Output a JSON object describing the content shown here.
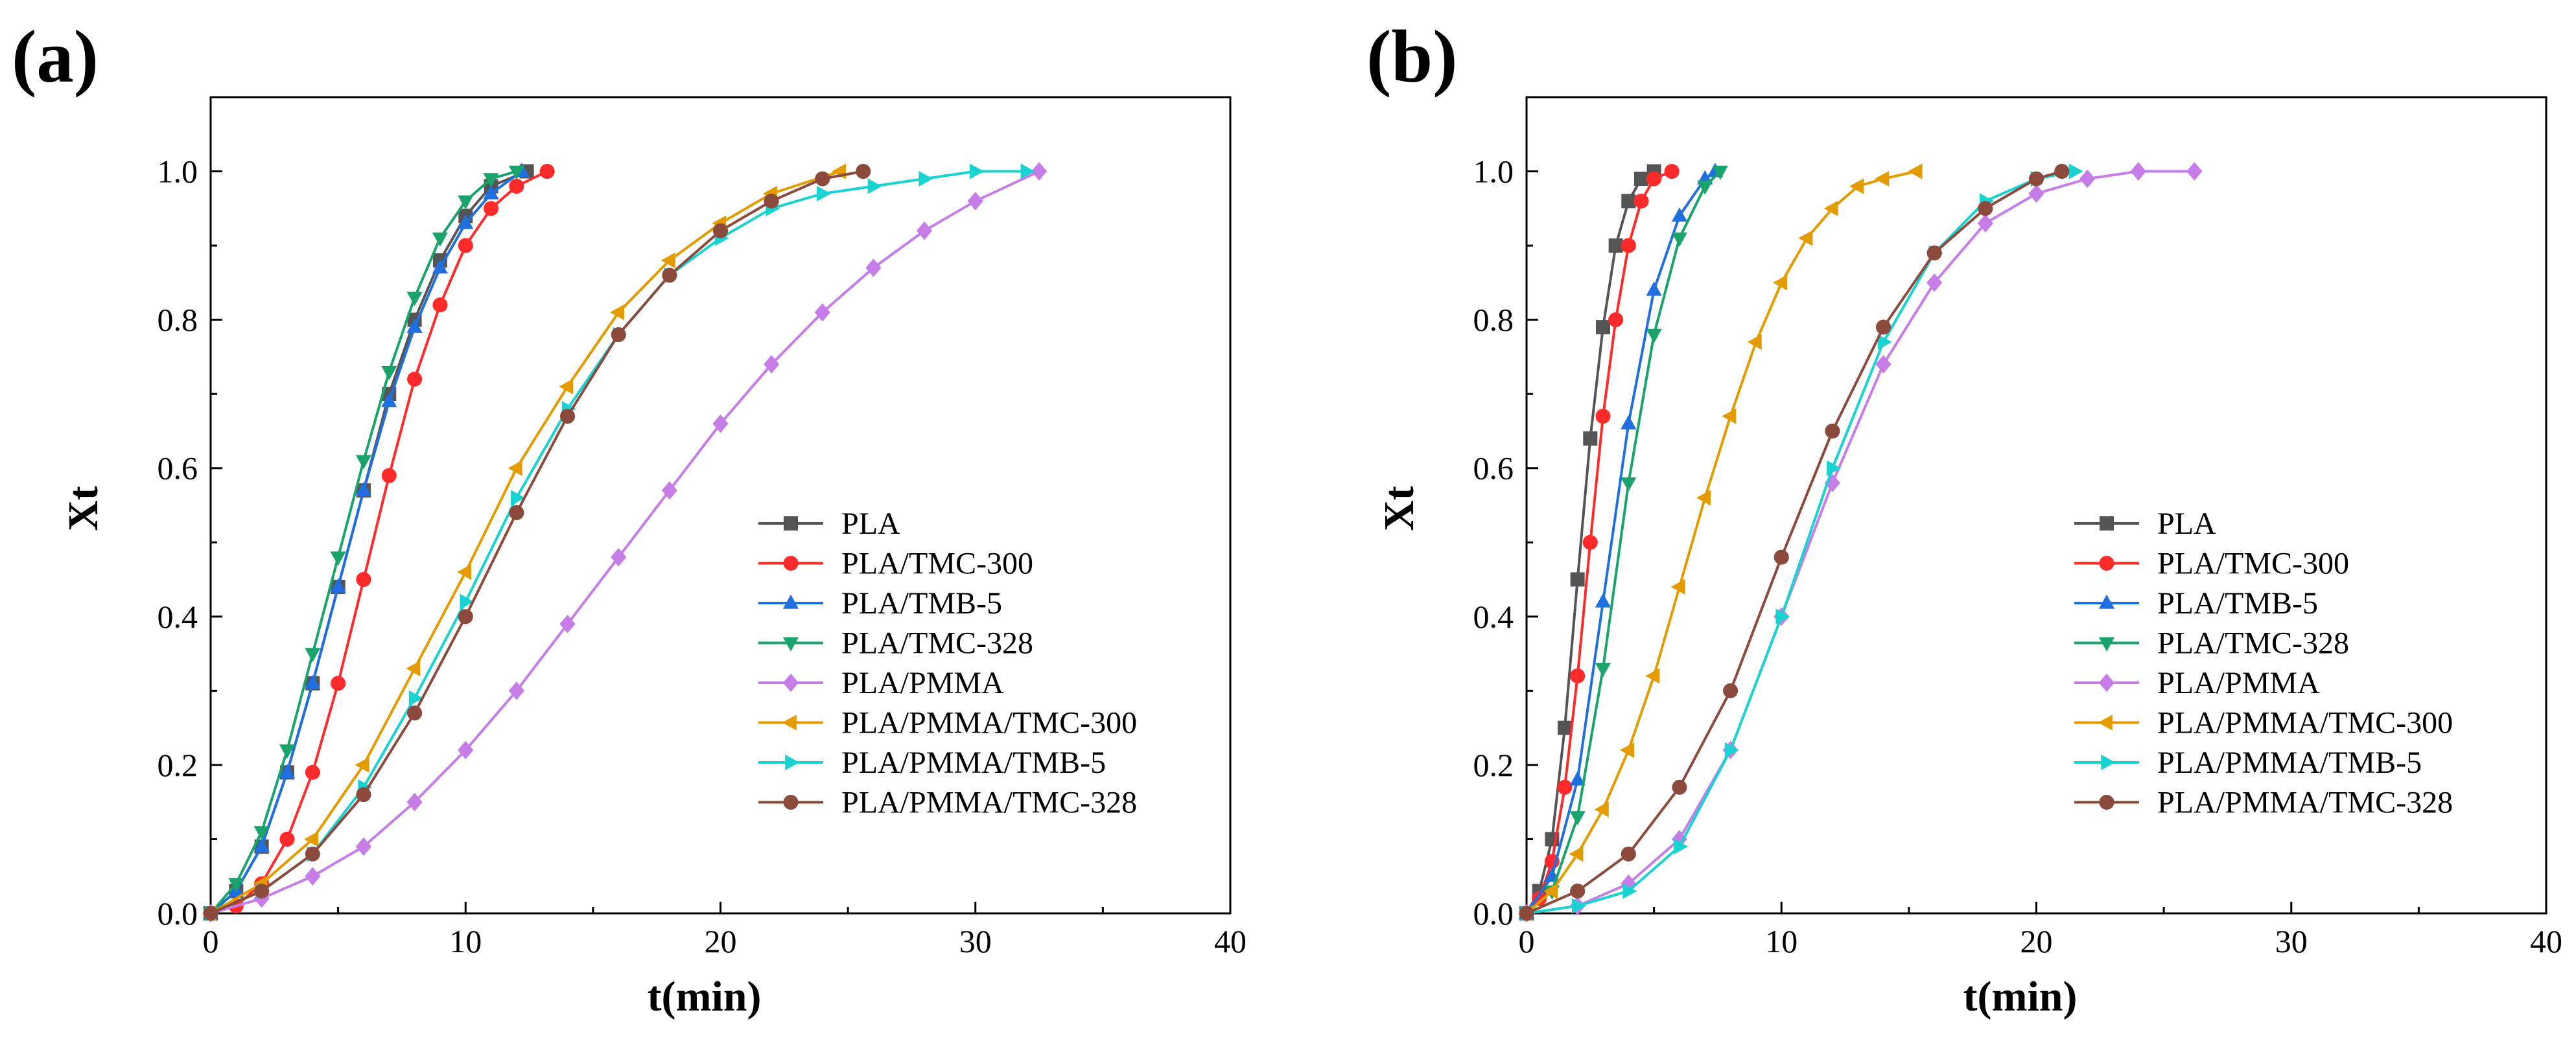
{
  "panels": [
    {
      "label": "(a)"
    },
    {
      "label": "(b)"
    }
  ],
  "chart_data": [
    {
      "type": "line",
      "panel": "(a)",
      "title": "",
      "xlabel": "t(min)",
      "ylabel": "Xt",
      "xlim": [
        0,
        40
      ],
      "ylim": [
        0,
        1.1
      ],
      "xticks": [
        0,
        10,
        20,
        30,
        40
      ],
      "yticks": [
        0.0,
        0.2,
        0.4,
        0.6,
        0.8,
        1.0
      ],
      "grid": false,
      "legend_position": "lower-right",
      "series": [
        {
          "name": "PLA",
          "color": "#555555",
          "marker": "square",
          "x": [
            0,
            1,
            2,
            3,
            4,
            5,
            6,
            7,
            8,
            9,
            10,
            11,
            12.4
          ],
          "y": [
            0,
            0.03,
            0.09,
            0.19,
            0.31,
            0.44,
            0.57,
            0.7,
            0.8,
            0.88,
            0.94,
            0.98,
            1.0
          ]
        },
        {
          "name": "PLA/TMC-300",
          "color": "#ff2b2b",
          "marker": "circle",
          "x": [
            0,
            1,
            2,
            3,
            4,
            5,
            6,
            7,
            8,
            9,
            10,
            11,
            12,
            13.2
          ],
          "y": [
            0,
            0.01,
            0.04,
            0.1,
            0.19,
            0.31,
            0.45,
            0.59,
            0.72,
            0.82,
            0.9,
            0.95,
            0.98,
            1.0
          ]
        },
        {
          "name": "PLA/TMB-5",
          "color": "#1f6fe0",
          "marker": "triangle-up",
          "x": [
            0,
            1,
            2,
            3,
            4,
            5,
            6,
            7,
            8,
            9,
            10,
            11,
            12.2
          ],
          "y": [
            0,
            0.03,
            0.09,
            0.19,
            0.31,
            0.44,
            0.57,
            0.69,
            0.79,
            0.87,
            0.93,
            0.97,
            1.0
          ]
        },
        {
          "name": "PLA/TMC-328",
          "color": "#1aa36b",
          "marker": "triangle-down",
          "x": [
            0,
            1,
            2,
            3,
            4,
            5,
            6,
            7,
            8,
            9,
            10,
            11,
            12
          ],
          "y": [
            0,
            0.04,
            0.11,
            0.22,
            0.35,
            0.48,
            0.61,
            0.73,
            0.83,
            0.91,
            0.96,
            0.99,
            1.0
          ]
        },
        {
          "name": "PLA/PMMA",
          "color": "#c77de8",
          "marker": "diamond",
          "x": [
            0,
            2,
            4,
            6,
            8,
            10,
            12,
            14,
            16,
            18,
            20,
            22,
            24,
            26,
            28,
            30,
            32.5
          ],
          "y": [
            0,
            0.02,
            0.05,
            0.09,
            0.15,
            0.22,
            0.3,
            0.39,
            0.48,
            0.57,
            0.66,
            0.74,
            0.81,
            0.87,
            0.92,
            0.96,
            1.0
          ]
        },
        {
          "name": "PLA/PMMA/TMC-300",
          "color": "#e39b00",
          "marker": "triangle-left",
          "x": [
            0,
            2,
            4,
            6,
            8,
            10,
            12,
            14,
            16,
            18,
            20,
            22,
            24.7
          ],
          "y": [
            0,
            0.04,
            0.1,
            0.2,
            0.33,
            0.46,
            0.6,
            0.71,
            0.81,
            0.88,
            0.93,
            0.97,
            1.0
          ]
        },
        {
          "name": "PLA/PMMA/TMB-5",
          "color": "#19d3d3",
          "marker": "triangle-right",
          "x": [
            0,
            2,
            4,
            6,
            8,
            10,
            12,
            14,
            16,
            18,
            20,
            22,
            24,
            26,
            28,
            30,
            32
          ],
          "y": [
            0,
            0.03,
            0.08,
            0.17,
            0.29,
            0.42,
            0.56,
            0.68,
            0.78,
            0.86,
            0.91,
            0.95,
            0.97,
            0.98,
            0.99,
            1.0,
            1.0
          ]
        },
        {
          "name": "PLA/PMMA/TMC-328",
          "color": "#8b4a3c",
          "marker": "circle",
          "x": [
            0,
            2,
            4,
            6,
            8,
            10,
            12,
            14,
            16,
            18,
            20,
            22,
            24,
            25.6
          ],
          "y": [
            0,
            0.03,
            0.08,
            0.16,
            0.27,
            0.4,
            0.54,
            0.67,
            0.78,
            0.86,
            0.92,
            0.96,
            0.99,
            1.0
          ]
        }
      ]
    },
    {
      "type": "line",
      "panel": "(b)",
      "title": "",
      "xlabel": "t(min)",
      "ylabel": "Xt",
      "xlim": [
        0,
        40
      ],
      "ylim": [
        0,
        1.1
      ],
      "xticks": [
        0,
        10,
        20,
        30,
        40
      ],
      "yticks": [
        0.0,
        0.2,
        0.4,
        0.6,
        0.8,
        1.0
      ],
      "grid": false,
      "legend_position": "lower-right",
      "series": [
        {
          "name": "PLA",
          "color": "#555555",
          "marker": "square",
          "x": [
            0,
            0.5,
            1,
            1.5,
            2,
            2.5,
            3,
            3.5,
            4,
            4.5,
            5
          ],
          "y": [
            0,
            0.03,
            0.1,
            0.25,
            0.45,
            0.64,
            0.79,
            0.9,
            0.96,
            0.99,
            1.0
          ]
        },
        {
          "name": "PLA/TMC-300",
          "color": "#ff2b2b",
          "marker": "circle",
          "x": [
            0,
            0.5,
            1,
            1.5,
            2,
            2.5,
            3,
            3.5,
            4,
            4.5,
            5,
            5.7
          ],
          "y": [
            0,
            0.02,
            0.07,
            0.17,
            0.32,
            0.5,
            0.67,
            0.8,
            0.9,
            0.96,
            0.99,
            1.0
          ]
        },
        {
          "name": "PLA/TMB-5",
          "color": "#1f6fe0",
          "marker": "triangle-up",
          "x": [
            0,
            1,
            2,
            3,
            4,
            5,
            6,
            7,
            7.4
          ],
          "y": [
            0,
            0.05,
            0.18,
            0.42,
            0.66,
            0.84,
            0.94,
            0.99,
            1.0
          ]
        },
        {
          "name": "PLA/TMC-328",
          "color": "#1aa36b",
          "marker": "triangle-down",
          "x": [
            0,
            1,
            2,
            3,
            4,
            5,
            6,
            7,
            7.6
          ],
          "y": [
            0,
            0.03,
            0.13,
            0.33,
            0.58,
            0.78,
            0.91,
            0.98,
            1.0
          ]
        },
        {
          "name": "PLA/PMMA",
          "color": "#c77de8",
          "marker": "diamond",
          "x": [
            0,
            2,
            4,
            6,
            8,
            10,
            12,
            14,
            16,
            18,
            20,
            22,
            24,
            26.2
          ],
          "y": [
            0,
            0.01,
            0.04,
            0.1,
            0.22,
            0.4,
            0.58,
            0.74,
            0.85,
            0.93,
            0.97,
            0.99,
            1.0,
            1.0
          ]
        },
        {
          "name": "PLA/PMMA/TMC-300",
          "color": "#e39b00",
          "marker": "triangle-left",
          "x": [
            0,
            1,
            2,
            3,
            4,
            5,
            6,
            7,
            8,
            9,
            10,
            11,
            12,
            13,
            14,
            15.3
          ],
          "y": [
            0,
            0.03,
            0.08,
            0.14,
            0.22,
            0.32,
            0.44,
            0.56,
            0.67,
            0.77,
            0.85,
            0.91,
            0.95,
            0.98,
            0.99,
            1.0
          ]
        },
        {
          "name": "PLA/PMMA/TMB-5",
          "color": "#19d3d3",
          "marker": "triangle-right",
          "x": [
            0,
            2,
            4,
            6,
            8,
            10,
            12,
            14,
            16,
            18,
            20,
            21.5
          ],
          "y": [
            0,
            0.01,
            0.03,
            0.09,
            0.22,
            0.4,
            0.6,
            0.77,
            0.89,
            0.96,
            0.99,
            1.0
          ]
        },
        {
          "name": "PLA/PMMA/TMC-328",
          "color": "#8b4a3c",
          "marker": "circle",
          "x": [
            0,
            2,
            4,
            6,
            8,
            10,
            12,
            14,
            16,
            18,
            20,
            21
          ],
          "y": [
            0,
            0.03,
            0.08,
            0.17,
            0.3,
            0.48,
            0.65,
            0.79,
            0.89,
            0.95,
            0.99,
            1.0
          ]
        }
      ]
    }
  ]
}
